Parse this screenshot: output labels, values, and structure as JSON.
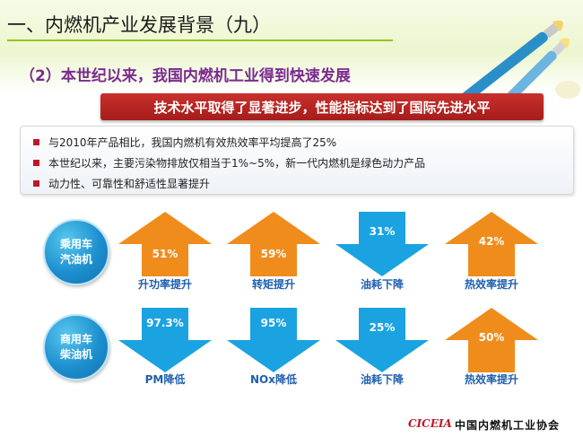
{
  "header": {
    "title": "一、内燃机产业发展背景（九）",
    "subtitle": "（2）本世纪以来，我国内燃机工业得到快速发展"
  },
  "banner": "技术水平取得了显著进步，性能指标达到了国际先进水平",
  "bullets": [
    "与2010年产品相比，我国内燃机有效热效率平均提高了25%",
    "本世纪以来，主要污染物排放仅相当于1%~5%，新一代内燃机是绿色动力产品",
    "动力性、可靠性和舒适性显著提升"
  ],
  "rows": [
    {
      "label_line1": "乘用车",
      "label_line2": "汽油机",
      "items": [
        {
          "value": "51%",
          "direction": "up",
          "label": "升功率提升"
        },
        {
          "value": "59%",
          "direction": "up",
          "label": "转矩提升"
        },
        {
          "value": "31%",
          "direction": "down",
          "label": "油耗下降"
        },
        {
          "value": "42%",
          "direction": "up",
          "label": "热效率提升"
        }
      ]
    },
    {
      "label_line1": "商用车",
      "label_line2": "柴油机",
      "items": [
        {
          "value": "97.3%",
          "direction": "down",
          "label": "PM降低"
        },
        {
          "value": "95%",
          "direction": "up",
          "label": "NOx降低"
        },
        {
          "value": "25%",
          "direction": "down",
          "label": "油耗下降"
        },
        {
          "value": "50%",
          "direction": "up",
          "label": "热效率提升"
        }
      ]
    }
  ],
  "footer": {
    "logo": "CICEIA",
    "org": "中国内燃机工业协会"
  },
  "colors": {
    "up_arrow": "#f08c1c",
    "down_arrow": "#1aa3e0",
    "label_text": "#1f5fae",
    "banner": "#b52422",
    "subtitle": "#7b2a8f"
  }
}
